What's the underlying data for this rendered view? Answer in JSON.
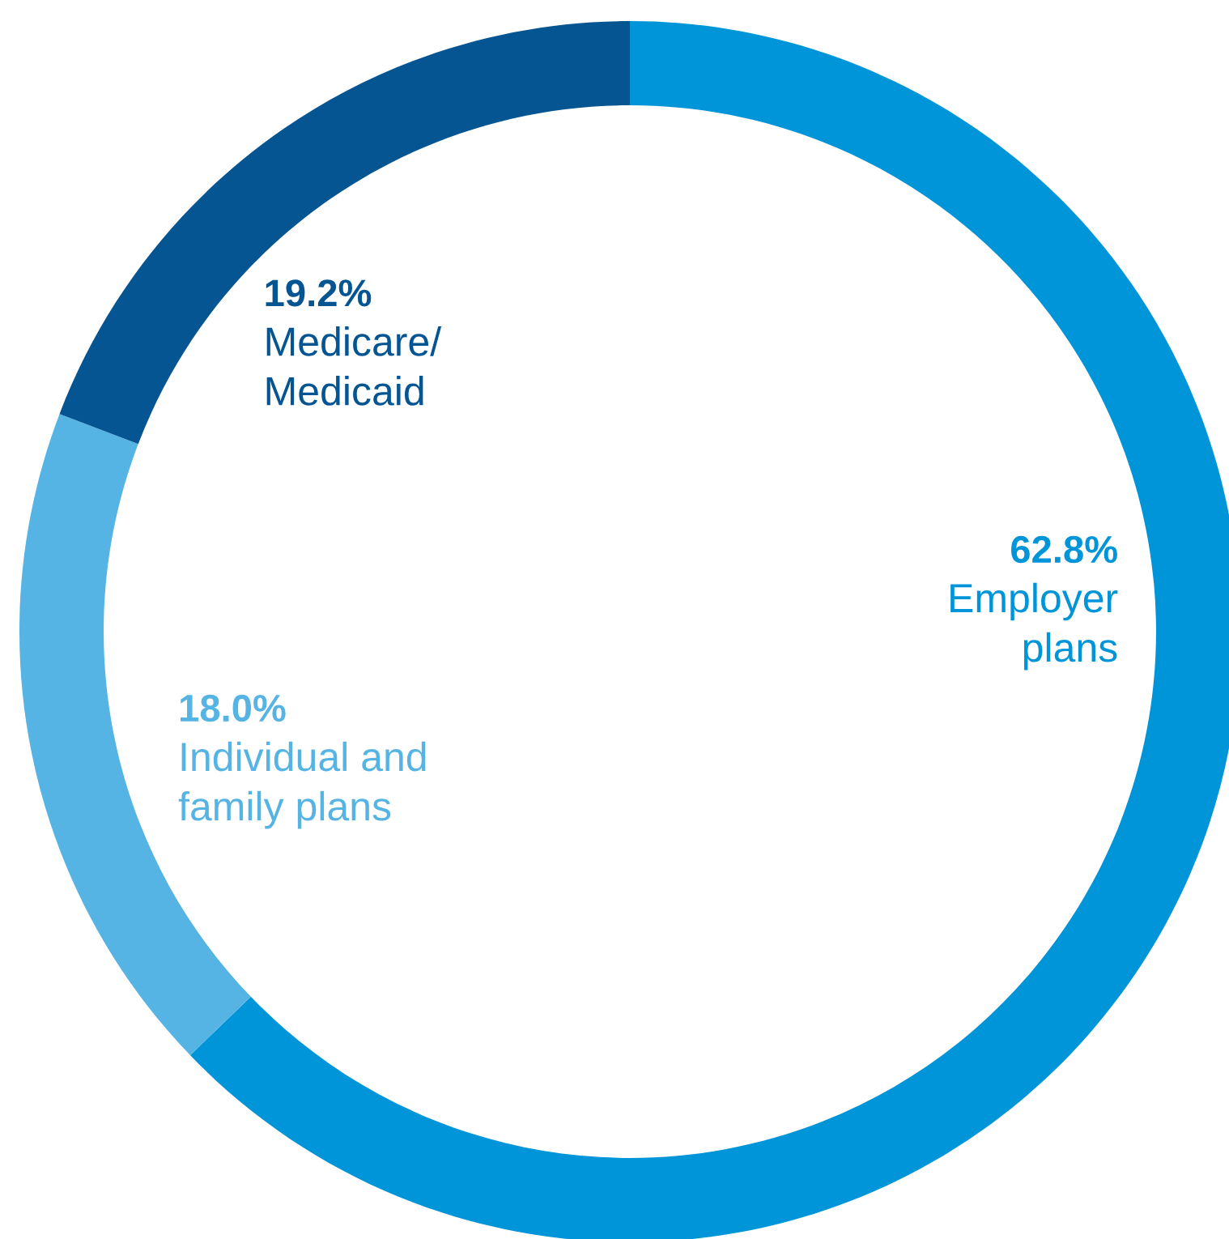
{
  "chart_data": {
    "type": "donut",
    "categories": [
      "Employer\nplans",
      "Individual and\nfamily plans",
      "Medicare/\nMedicaid"
    ],
    "values": [
      62.8,
      18.0,
      19.2
    ],
    "value_labels": [
      "62.8%",
      "18.0%",
      "19.2%"
    ],
    "colors": [
      "#0094d9",
      "#56b4e5",
      "#055593"
    ]
  }
}
